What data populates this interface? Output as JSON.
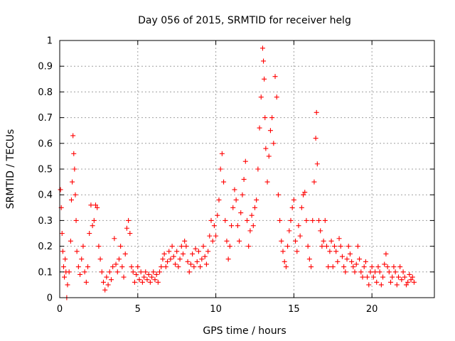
{
  "chart_data": {
    "type": "scatter",
    "title": "Day 056 of 2015, SRMTID for receiver helg",
    "xlabel": "GPS time / hours",
    "ylabel": "SRMTID / TECUs",
    "xlim": [
      0,
      24
    ],
    "ylim": [
      0,
      1
    ],
    "xticks": [
      0,
      5,
      10,
      15,
      20
    ],
    "yticks": [
      0,
      0.1,
      0.2,
      0.3,
      0.4,
      0.5,
      0.6,
      0.7,
      0.8,
      0.9,
      1
    ],
    "xtick_labels": [
      "0",
      "5",
      "10",
      "15",
      "20"
    ],
    "ytick_labels": [
      "0",
      "0.1",
      "0.2",
      "0.3",
      "0.4",
      "0.5",
      "0.6",
      "0.7",
      "0.8",
      "0.9",
      "1"
    ],
    "grid": true,
    "marker": "+",
    "color": "#ff0000",
    "series": [
      {
        "name": "SRMTID",
        "points": [
          [
            0.05,
            0.42
          ],
          [
            0.1,
            0.35
          ],
          [
            0.15,
            0.25
          ],
          [
            0.2,
            0.18
          ],
          [
            0.25,
            0.12
          ],
          [
            0.3,
            0.08
          ],
          [
            0.35,
            0.15
          ],
          [
            0.4,
            0.1
          ],
          [
            0.45,
            0.0
          ],
          [
            0.5,
            0.05
          ],
          [
            0.6,
            0.1
          ],
          [
            0.7,
            0.22
          ],
          [
            0.75,
            0.38
          ],
          [
            0.8,
            0.45
          ],
          [
            0.85,
            0.63
          ],
          [
            0.9,
            0.56
          ],
          [
            0.95,
            0.5
          ],
          [
            1.0,
            0.4
          ],
          [
            1.05,
            0.3
          ],
          [
            1.1,
            0.18
          ],
          [
            1.2,
            0.12
          ],
          [
            1.3,
            0.09
          ],
          [
            1.4,
            0.15
          ],
          [
            1.5,
            0.2
          ],
          [
            1.6,
            0.1
          ],
          [
            1.7,
            0.06
          ],
          [
            1.8,
            0.12
          ],
          [
            1.9,
            0.25
          ],
          [
            2.0,
            0.36
          ],
          [
            2.1,
            0.28
          ],
          [
            2.2,
            0.3
          ],
          [
            2.3,
            0.36
          ],
          [
            2.4,
            0.35
          ],
          [
            2.5,
            0.2
          ],
          [
            2.6,
            0.15
          ],
          [
            2.7,
            0.1
          ],
          [
            2.8,
            0.06
          ],
          [
            2.9,
            0.03
          ],
          [
            3.0,
            0.08
          ],
          [
            3.1,
            0.05
          ],
          [
            3.2,
            0.1
          ],
          [
            3.3,
            0.07
          ],
          [
            3.4,
            0.12
          ],
          [
            3.5,
            0.23
          ],
          [
            3.6,
            0.13
          ],
          [
            3.7,
            0.1
          ],
          [
            3.8,
            0.15
          ],
          [
            3.9,
            0.2
          ],
          [
            4.0,
            0.12
          ],
          [
            4.1,
            0.08
          ],
          [
            4.2,
            0.17
          ],
          [
            4.3,
            0.27
          ],
          [
            4.4,
            0.3
          ],
          [
            4.5,
            0.25
          ],
          [
            4.6,
            0.12
          ],
          [
            4.7,
            0.1
          ],
          [
            4.8,
            0.06
          ],
          [
            4.9,
            0.09
          ],
          [
            5.0,
            0.12
          ],
          [
            5.1,
            0.07
          ],
          [
            5.2,
            0.1
          ],
          [
            5.3,
            0.06
          ],
          [
            5.4,
            0.08
          ],
          [
            5.5,
            0.1
          ],
          [
            5.6,
            0.07
          ],
          [
            5.7,
            0.09
          ],
          [
            5.8,
            0.06
          ],
          [
            5.9,
            0.08
          ],
          [
            6.0,
            0.1
          ],
          [
            6.1,
            0.07
          ],
          [
            6.2,
            0.09
          ],
          [
            6.3,
            0.06
          ],
          [
            6.4,
            0.1
          ],
          [
            6.5,
            0.12
          ],
          [
            6.6,
            0.15
          ],
          [
            6.7,
            0.17
          ],
          [
            6.8,
            0.12
          ],
          [
            6.9,
            0.14
          ],
          [
            7.0,
            0.18
          ],
          [
            7.1,
            0.15
          ],
          [
            7.2,
            0.2
          ],
          [
            7.3,
            0.16
          ],
          [
            7.4,
            0.13
          ],
          [
            7.5,
            0.18
          ],
          [
            7.6,
            0.12
          ],
          [
            7.7,
            0.15
          ],
          [
            7.8,
            0.2
          ],
          [
            7.9,
            0.17
          ],
          [
            8.0,
            0.22
          ],
          [
            8.1,
            0.2
          ],
          [
            8.2,
            0.14
          ],
          [
            8.3,
            0.1
          ],
          [
            8.4,
            0.13
          ],
          [
            8.5,
            0.17
          ],
          [
            8.6,
            0.12
          ],
          [
            8.7,
            0.19
          ],
          [
            8.8,
            0.14
          ],
          [
            8.9,
            0.18
          ],
          [
            9.0,
            0.12
          ],
          [
            9.1,
            0.15
          ],
          [
            9.2,
            0.2
          ],
          [
            9.3,
            0.16
          ],
          [
            9.4,
            0.13
          ],
          [
            9.5,
            0.18
          ],
          [
            9.6,
            0.24
          ],
          [
            9.7,
            0.3
          ],
          [
            9.8,
            0.22
          ],
          [
            9.9,
            0.28
          ],
          [
            10.0,
            0.24
          ],
          [
            10.1,
            0.32
          ],
          [
            10.2,
            0.38
          ],
          [
            10.3,
            0.5
          ],
          [
            10.4,
            0.56
          ],
          [
            10.5,
            0.45
          ],
          [
            10.6,
            0.3
          ],
          [
            10.7,
            0.22
          ],
          [
            10.8,
            0.15
          ],
          [
            10.9,
            0.2
          ],
          [
            11.0,
            0.28
          ],
          [
            11.1,
            0.35
          ],
          [
            11.2,
            0.42
          ],
          [
            11.3,
            0.38
          ],
          [
            11.4,
            0.28
          ],
          [
            11.5,
            0.22
          ],
          [
            11.6,
            0.33
          ],
          [
            11.7,
            0.4
          ],
          [
            11.8,
            0.46
          ],
          [
            11.9,
            0.53
          ],
          [
            12.0,
            0.3
          ],
          [
            12.1,
            0.2
          ],
          [
            12.2,
            0.26
          ],
          [
            12.3,
            0.32
          ],
          [
            12.4,
            0.28
          ],
          [
            12.5,
            0.35
          ],
          [
            12.6,
            0.38
          ],
          [
            12.7,
            0.5
          ],
          [
            12.8,
            0.66
          ],
          [
            12.9,
            0.78
          ],
          [
            13.0,
            0.97
          ],
          [
            13.05,
            0.92
          ],
          [
            13.1,
            0.85
          ],
          [
            13.15,
            0.7
          ],
          [
            13.2,
            0.58
          ],
          [
            13.3,
            0.45
          ],
          [
            13.4,
            0.55
          ],
          [
            13.5,
            0.65
          ],
          [
            13.6,
            0.7
          ],
          [
            13.7,
            0.6
          ],
          [
            13.8,
            0.86
          ],
          [
            13.9,
            0.78
          ],
          [
            14.0,
            0.4
          ],
          [
            14.1,
            0.3
          ],
          [
            14.2,
            0.22
          ],
          [
            14.3,
            0.18
          ],
          [
            14.4,
            0.14
          ],
          [
            14.5,
            0.12
          ],
          [
            14.6,
            0.2
          ],
          [
            14.7,
            0.26
          ],
          [
            14.8,
            0.3
          ],
          [
            14.9,
            0.35
          ],
          [
            15.0,
            0.38
          ],
          [
            15.1,
            0.22
          ],
          [
            15.2,
            0.18
          ],
          [
            15.3,
            0.28
          ],
          [
            15.4,
            0.24
          ],
          [
            15.5,
            0.35
          ],
          [
            15.6,
            0.4
          ],
          [
            15.7,
            0.41
          ],
          [
            15.8,
            0.3
          ],
          [
            15.9,
            0.2
          ],
          [
            16.0,
            0.15
          ],
          [
            16.1,
            0.12
          ],
          [
            16.2,
            0.3
          ],
          [
            16.3,
            0.45
          ],
          [
            16.4,
            0.62
          ],
          [
            16.45,
            0.72
          ],
          [
            16.5,
            0.52
          ],
          [
            16.6,
            0.3
          ],
          [
            16.7,
            0.26
          ],
          [
            16.8,
            0.2
          ],
          [
            16.9,
            0.22
          ],
          [
            17.0,
            0.3
          ],
          [
            17.1,
            0.2
          ],
          [
            17.2,
            0.12
          ],
          [
            17.3,
            0.18
          ],
          [
            17.4,
            0.22
          ],
          [
            17.5,
            0.12
          ],
          [
            17.6,
            0.2
          ],
          [
            17.7,
            0.18
          ],
          [
            17.8,
            0.14
          ],
          [
            17.9,
            0.23
          ],
          [
            18.0,
            0.2
          ],
          [
            18.1,
            0.16
          ],
          [
            18.2,
            0.12
          ],
          [
            18.3,
            0.1
          ],
          [
            18.4,
            0.15
          ],
          [
            18.5,
            0.2
          ],
          [
            18.6,
            0.17
          ],
          [
            18.7,
            0.14
          ],
          [
            18.8,
            0.12
          ],
          [
            18.9,
            0.1
          ],
          [
            19.0,
            0.13
          ],
          [
            19.1,
            0.2
          ],
          [
            19.2,
            0.15
          ],
          [
            19.3,
            0.1
          ],
          [
            19.4,
            0.08
          ],
          [
            19.5,
            0.12
          ],
          [
            19.6,
            0.14
          ],
          [
            19.7,
            0.08
          ],
          [
            19.8,
            0.05
          ],
          [
            19.9,
            0.1
          ],
          [
            20.0,
            0.12
          ],
          [
            20.1,
            0.08
          ],
          [
            20.2,
            0.1
          ],
          [
            20.3,
            0.06
          ],
          [
            20.4,
            0.12
          ],
          [
            20.5,
            0.1
          ],
          [
            20.6,
            0.05
          ],
          [
            20.7,
            0.08
          ],
          [
            20.8,
            0.13
          ],
          [
            20.9,
            0.17
          ],
          [
            21.0,
            0.12
          ],
          [
            21.1,
            0.1
          ],
          [
            21.2,
            0.06
          ],
          [
            21.3,
            0.08
          ],
          [
            21.4,
            0.12
          ],
          [
            21.5,
            0.1
          ],
          [
            21.6,
            0.05
          ],
          [
            21.7,
            0.08
          ],
          [
            21.8,
            0.12
          ],
          [
            21.9,
            0.07
          ],
          [
            22.0,
            0.1
          ],
          [
            22.1,
            0.08
          ],
          [
            22.2,
            0.05
          ],
          [
            22.3,
            0.06
          ],
          [
            22.4,
            0.09
          ],
          [
            22.5,
            0.07
          ],
          [
            22.6,
            0.08
          ],
          [
            22.7,
            0.06
          ]
        ]
      }
    ]
  }
}
